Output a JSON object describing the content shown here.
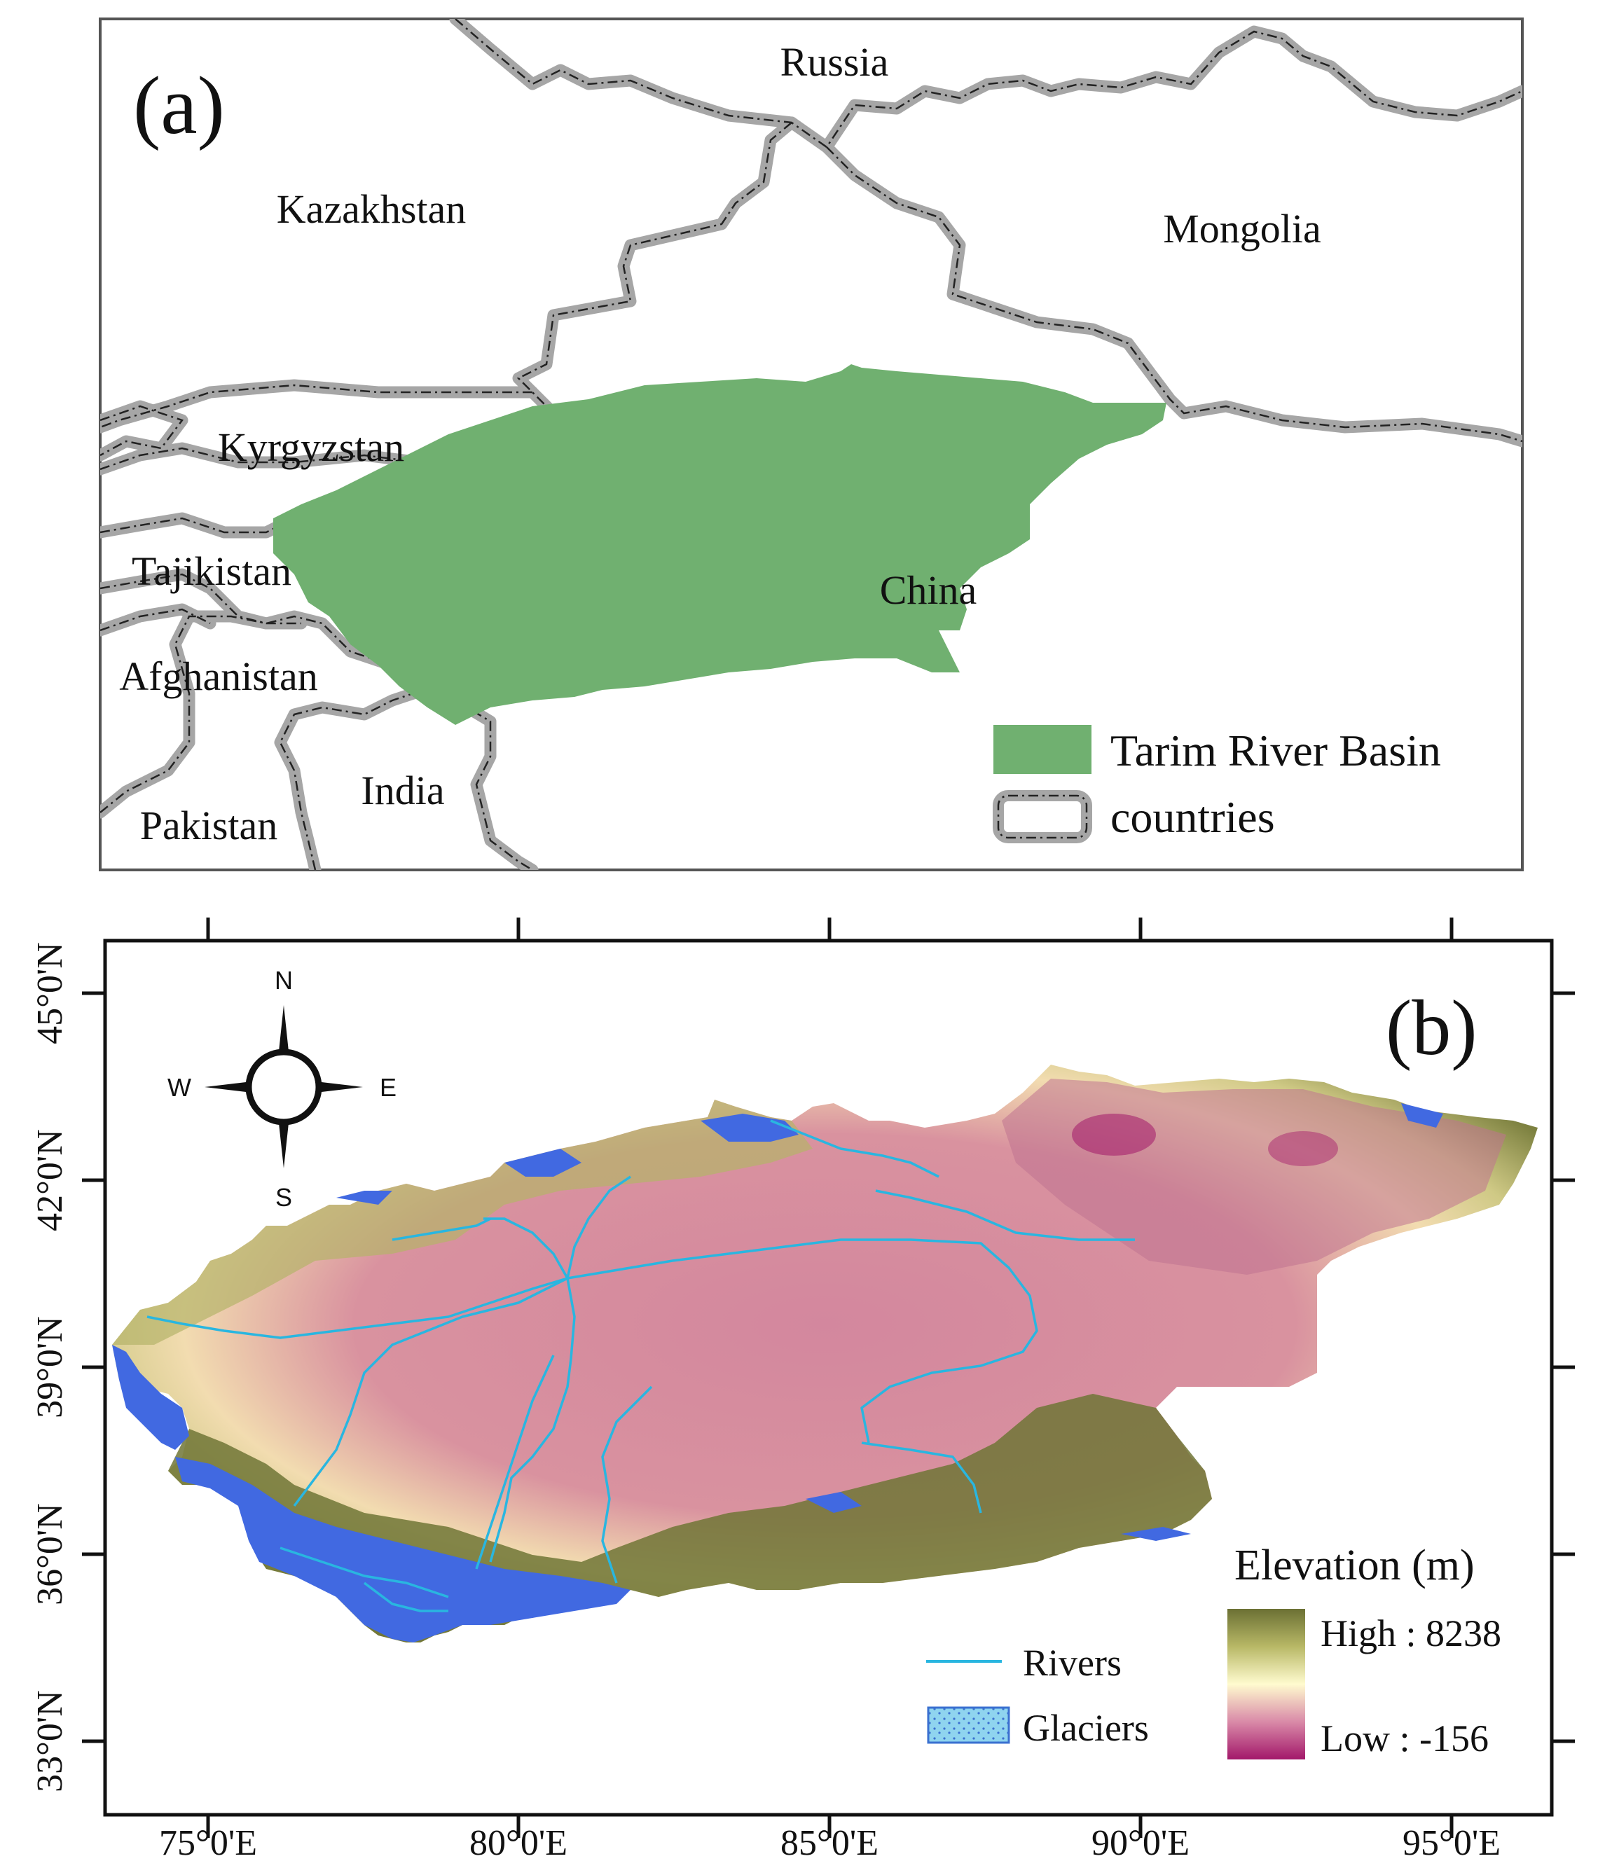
{
  "panel_a": {
    "label": "(a)",
    "countries": {
      "russia": "Russia",
      "kazakhstan": "Kazakhstan",
      "mongolia": "Mongolia",
      "kyrgyzstan": "Kyrgyzstan",
      "tajikistan": "Tajikistan",
      "afghanistan": "Afghanistan",
      "china": "China",
      "pakistan": "Pakistan",
      "india": "India"
    },
    "legend": {
      "basin": "Tarim River Basin",
      "countries": "countries"
    },
    "colors": {
      "basin": "#70b070",
      "border_casing": "#a6a6a6",
      "border_line": "#222222"
    }
  },
  "panel_b": {
    "label": "(b)",
    "compass": {
      "n": "N",
      "s": "S",
      "w": "W",
      "e": "E"
    },
    "x_ticks": [
      "75°0'E",
      "80°0'E",
      "85°0'E",
      "90°0'E",
      "95°0'E"
    ],
    "y_ticks": [
      "45°0'N",
      "42°0'N",
      "39°0'N",
      "36°0'N",
      "33°0'N"
    ],
    "legend": {
      "rivers": "Rivers",
      "glaciers": "Glaciers",
      "elevation_title": "Elevation (m)",
      "high": "High : 8238",
      "low": "Low : -156"
    },
    "colors": {
      "river": "#29b6e0",
      "glacier": "#4169e1",
      "elevation_high": "#6b7034",
      "elevation_mid": "#fffbcf",
      "elevation_low": "#a3186a"
    }
  }
}
